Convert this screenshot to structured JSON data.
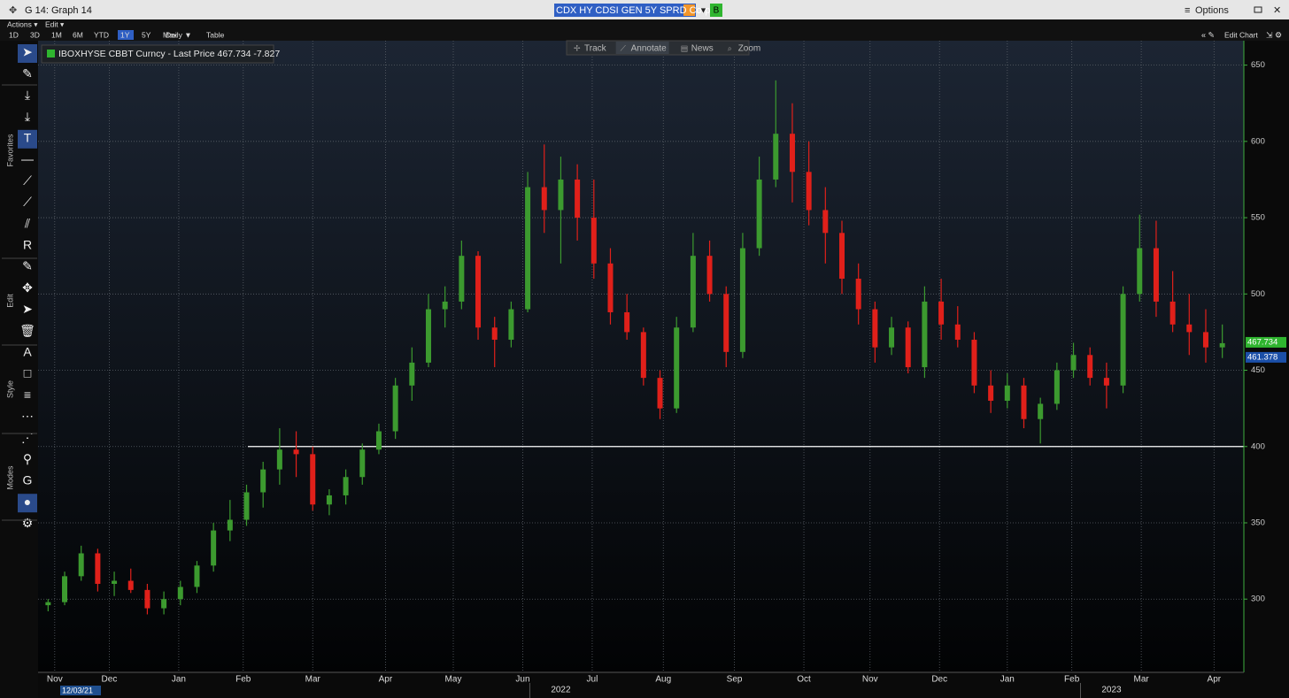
{
  "window": {
    "title": "G 14: Graph 14",
    "security": "CDX HY CDSI GEN 5Y SPRD Corp",
    "source_button": "B",
    "options": "Options"
  },
  "menus": [
    "Actions ▾",
    "Edit ▾"
  ],
  "periods": [
    "1D",
    "3D",
    "1M",
    "6M",
    "YTD",
    "1Y",
    "5Y",
    "Max"
  ],
  "selected_period_index": 5,
  "frequency": "Daily ▼",
  "table_button": "Table",
  "edit_chart": "Edit Chart",
  "chart_toolbar": [
    "Track",
    "Annotate",
    "News",
    "Zoom"
  ],
  "side_sections": [
    "Favorites",
    "Edit",
    "Style",
    "Modes"
  ],
  "chart_data": {
    "type": "candlestick",
    "legend": "IBOXHYSE CBBT Curncy - Last Price 467.734  -7.827",
    "legend_color": "#2fb52f",
    "up_color": "#3c9a2f",
    "down_color": "#e0201a",
    "open": [
      296,
      298,
      315,
      330,
      310,
      312,
      306,
      294,
      300,
      308,
      322,
      345,
      352,
      370,
      385,
      398,
      395,
      362,
      368,
      380,
      398,
      410,
      440,
      455,
      490,
      495,
      525,
      478,
      470,
      490,
      570,
      555,
      575,
      550,
      520,
      488,
      475,
      445,
      425,
      478,
      525,
      500,
      462,
      530,
      575,
      605,
      580,
      555,
      540,
      510,
      490,
      465,
      478,
      452,
      495,
      480,
      470,
      440,
      430,
      440,
      418,
      428,
      450,
      460,
      445,
      440,
      500,
      530,
      495,
      480,
      475,
      465
    ],
    "high": [
      300,
      318,
      335,
      333,
      318,
      320,
      310,
      305,
      312,
      325,
      350,
      365,
      375,
      390,
      412,
      410,
      400,
      372,
      385,
      402,
      415,
      445,
      465,
      500,
      505,
      535,
      528,
      485,
      495,
      580,
      598,
      590,
      585,
      575,
      530,
      500,
      478,
      450,
      485,
      540,
      535,
      505,
      540,
      590,
      640,
      625,
      600,
      570,
      548,
      520,
      495,
      485,
      482,
      505,
      510,
      492,
      475,
      450,
      448,
      445,
      432,
      455,
      468,
      465,
      455,
      505,
      552,
      548,
      515,
      500,
      490,
      480
    ],
    "low": [
      292,
      296,
      312,
      305,
      302,
      304,
      290,
      290,
      296,
      304,
      318,
      338,
      348,
      360,
      375,
      380,
      358,
      355,
      362,
      375,
      395,
      405,
      430,
      452,
      478,
      490,
      470,
      452,
      465,
      488,
      540,
      520,
      535,
      510,
      480,
      470,
      440,
      418,
      422,
      475,
      495,
      452,
      458,
      525,
      570,
      560,
      545,
      520,
      500,
      480,
      455,
      460,
      448,
      445,
      470,
      465,
      435,
      422,
      425,
      412,
      402,
      424,
      445,
      440,
      425,
      435,
      495,
      485,
      475,
      460,
      455,
      458
    ],
    "close": [
      298,
      315,
      330,
      310,
      312,
      306,
      294,
      300,
      308,
      322,
      345,
      352,
      370,
      385,
      398,
      395,
      362,
      368,
      380,
      398,
      410,
      440,
      455,
      490,
      495,
      525,
      478,
      470,
      490,
      570,
      555,
      575,
      550,
      520,
      488,
      475,
      445,
      425,
      478,
      525,
      500,
      462,
      530,
      575,
      605,
      580,
      555,
      540,
      510,
      490,
      465,
      478,
      452,
      495,
      480,
      470,
      440,
      430,
      440,
      418,
      428,
      450,
      460,
      445,
      440,
      500,
      530,
      495,
      480,
      475,
      465,
      467.734
    ],
    "ylim": [
      252,
      666
    ],
    "yticks": [
      300,
      350,
      400,
      450,
      500,
      550,
      600,
      650
    ],
    "grid": true,
    "reference_line": 400,
    "price_tags": [
      467.734,
      461.378
    ],
    "price_tag_colors": [
      "#2fb52f",
      "#1b4fa8"
    ],
    "xticks": [
      {
        "value": 0.4,
        "label": "Nov"
      },
      {
        "value": 3.7,
        "label": "Dec"
      },
      {
        "value": 7.9,
        "label": "Jan"
      },
      {
        "value": 11.8,
        "label": "Feb"
      },
      {
        "value": 16,
        "label": "Mar"
      },
      {
        "value": 20.4,
        "label": "Apr"
      },
      {
        "value": 24.5,
        "label": "May"
      },
      {
        "value": 28.7,
        "label": "Jun"
      },
      {
        "value": 32.9,
        "label": "Jul"
      },
      {
        "value": 37.2,
        "label": "Aug"
      },
      {
        "value": 41.5,
        "label": "Sep"
      },
      {
        "value": 45.7,
        "label": "Oct"
      },
      {
        "value": 49.7,
        "label": "Nov"
      },
      {
        "value": 53.9,
        "label": "Dec"
      },
      {
        "value": 58,
        "label": "Jan"
      },
      {
        "value": 61.9,
        "label": "Feb"
      },
      {
        "value": 66.1,
        "label": "Mar"
      },
      {
        "value": 70.5,
        "label": "Apr"
      }
    ],
    "year_labels": [
      {
        "value": 31,
        "label": "2022"
      },
      {
        "value": 64.3,
        "label": "2023"
      }
    ],
    "start_date": "12/03/21"
  }
}
